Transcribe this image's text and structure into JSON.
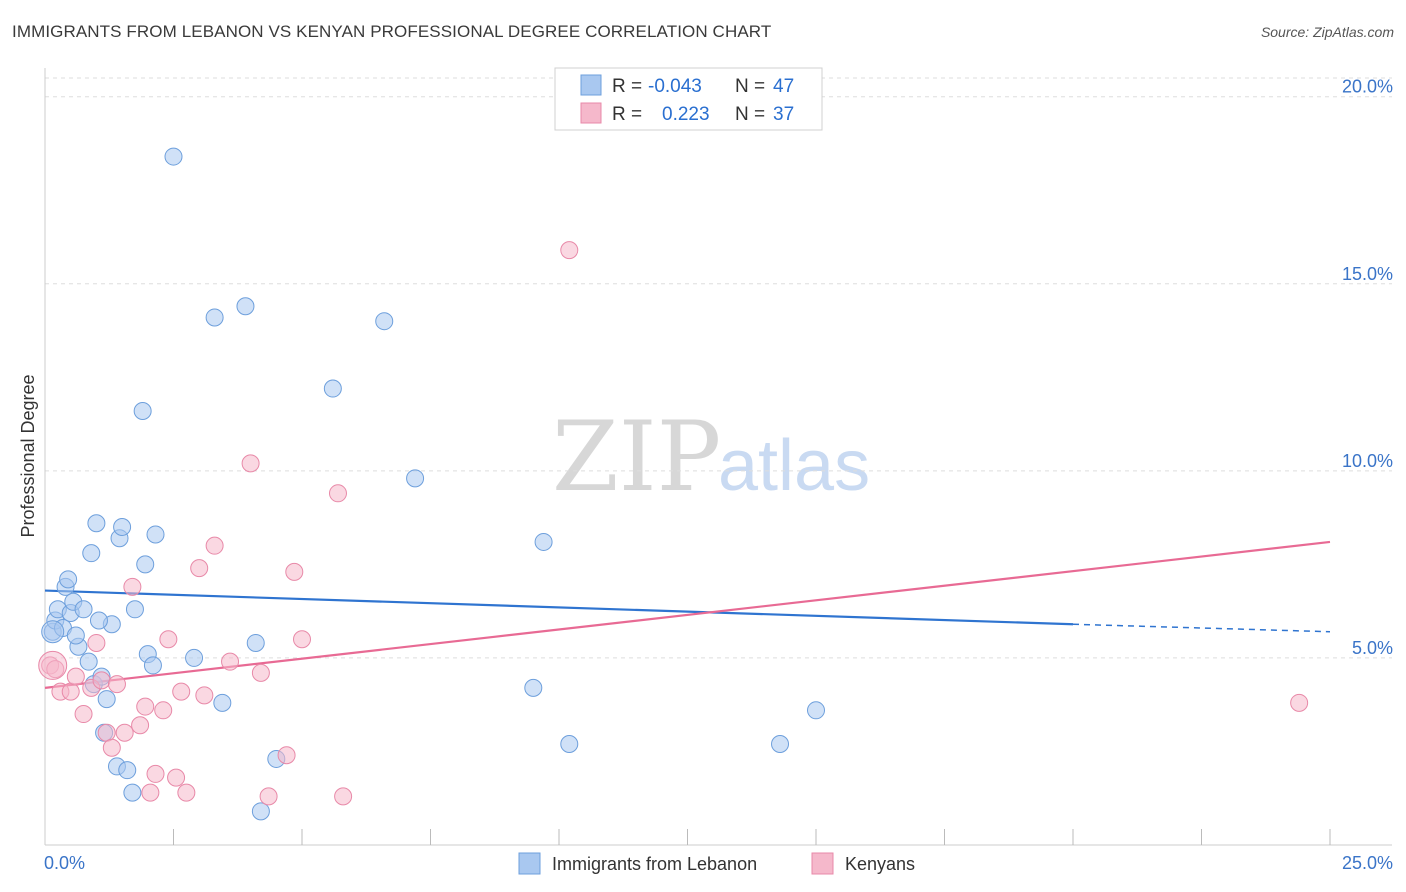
{
  "title": "IMMIGRANTS FROM LEBANON VS KENYAN PROFESSIONAL DEGREE CORRELATION CHART",
  "source": "Source: ZipAtlas.com",
  "watermark": {
    "zip": "ZIP",
    "atlas": "atlas"
  },
  "legend": {
    "rows": [
      {
        "r_label": "R =",
        "r_value": "-0.043",
        "n_label": "N =",
        "n_value": "47",
        "color": "#a9c8f0"
      },
      {
        "r_label": "R =",
        "r_value": "0.223",
        "n_label": "N =",
        "n_value": "37",
        "color": "#f5b8cb"
      }
    ]
  },
  "bottom_legend": [
    {
      "label": "Immigrants from Lebanon",
      "color": "#a9c8f0"
    },
    {
      "label": "Kenyans",
      "color": "#f5b8cb"
    }
  ],
  "chart_data": {
    "type": "scatter",
    "xlabel": "",
    "ylabel": "Professional Degree",
    "xlim": [
      0,
      25
    ],
    "ylim": [
      0,
      20.5
    ],
    "x_tick_labels": [
      {
        "value": 0,
        "label": "0.0%"
      },
      {
        "value": 25,
        "label": "25.0%"
      }
    ],
    "y_tick_labels": [
      {
        "value": 5,
        "label": "5.0%"
      },
      {
        "value": 10,
        "label": "10.0%"
      },
      {
        "value": 15,
        "label": "15.0%"
      },
      {
        "value": 20,
        "label": "20.0%"
      }
    ],
    "grid": true,
    "series": [
      {
        "name": "Immigrants from Lebanon",
        "color": "#a9c8f0",
        "stroke": "#6d9fdc",
        "trend_color": "#2f74d0",
        "trend": {
          "x0": 0,
          "y0": 6.8,
          "x1": 20,
          "y1": 5.9,
          "dash_to_x": 25,
          "dash_y": 5.7
        },
        "points": [
          [
            0.15,
            5.7
          ],
          [
            0.2,
            6
          ],
          [
            0.25,
            6.3
          ],
          [
            0.35,
            5.8
          ],
          [
            0.4,
            6.9
          ],
          [
            0.45,
            7.1
          ],
          [
            0.5,
            6.2
          ],
          [
            0.55,
            6.5
          ],
          [
            0.65,
            5.3
          ],
          [
            0.75,
            6.3
          ],
          [
            0.85,
            4.9
          ],
          [
            0.9,
            7.8
          ],
          [
            0.95,
            4.3
          ],
          [
            1.0,
            8.6
          ],
          [
            1.1,
            4.5
          ],
          [
            1.15,
            3.0
          ],
          [
            1.2,
            3.9
          ],
          [
            1.3,
            5.9
          ],
          [
            1.4,
            2.1
          ],
          [
            1.45,
            8.2
          ],
          [
            1.5,
            8.5
          ],
          [
            1.6,
            2.0
          ],
          [
            1.7,
            1.4
          ],
          [
            1.75,
            6.3
          ],
          [
            1.9,
            11.6
          ],
          [
            1.95,
            7.5
          ],
          [
            2.0,
            5.1
          ],
          [
            2.1,
            4.8
          ],
          [
            2.15,
            8.3
          ],
          [
            2.5,
            18.4
          ],
          [
            2.9,
            5.0
          ],
          [
            3.3,
            14.1
          ],
          [
            3.45,
            3.8
          ],
          [
            3.9,
            14.4
          ],
          [
            4.1,
            5.4
          ],
          [
            4.2,
            0.9
          ],
          [
            4.5,
            2.3
          ],
          [
            5.6,
            12.2
          ],
          [
            6.6,
            14.0
          ],
          [
            7.2,
            9.8
          ],
          [
            9.5,
            4.2
          ],
          [
            9.7,
            8.1
          ],
          [
            10.2,
            2.7
          ],
          [
            14.3,
            2.7
          ],
          [
            15.0,
            3.6
          ],
          [
            1.05,
            6.0
          ],
          [
            0.6,
            5.6
          ]
        ]
      },
      {
        "name": "Kenyans",
        "color": "#f5b8cb",
        "stroke": "#e889a8",
        "trend_color": "#e86a94",
        "trend": {
          "x0": 0,
          "y0": 4.2,
          "x1": 25,
          "y1": 8.1
        },
        "points": [
          [
            0.1,
            4.8
          ],
          [
            0.2,
            4.7
          ],
          [
            0.3,
            4.1
          ],
          [
            0.5,
            4.1
          ],
          [
            0.6,
            4.5
          ],
          [
            0.75,
            3.5
          ],
          [
            0.9,
            4.2
          ],
          [
            1.0,
            5.4
          ],
          [
            1.1,
            4.4
          ],
          [
            1.2,
            3.0
          ],
          [
            1.3,
            2.6
          ],
          [
            1.4,
            4.3
          ],
          [
            1.55,
            3.0
          ],
          [
            1.7,
            6.9
          ],
          [
            1.85,
            3.2
          ],
          [
            1.95,
            3.7
          ],
          [
            2.05,
            1.4
          ],
          [
            2.15,
            1.9
          ],
          [
            2.3,
            3.6
          ],
          [
            2.4,
            5.5
          ],
          [
            2.55,
            1.8
          ],
          [
            2.65,
            4.1
          ],
          [
            2.75,
            1.4
          ],
          [
            3.0,
            7.4
          ],
          [
            3.1,
            4.0
          ],
          [
            3.3,
            8.0
          ],
          [
            3.6,
            4.9
          ],
          [
            4.0,
            10.2
          ],
          [
            4.2,
            4.6
          ],
          [
            4.35,
            1.3
          ],
          [
            4.7,
            2.4
          ],
          [
            4.85,
            7.3
          ],
          [
            5.0,
            5.5
          ],
          [
            5.7,
            9.4
          ],
          [
            5.8,
            1.3
          ],
          [
            10.2,
            15.9
          ],
          [
            24.4,
            3.8
          ]
        ]
      }
    ]
  }
}
